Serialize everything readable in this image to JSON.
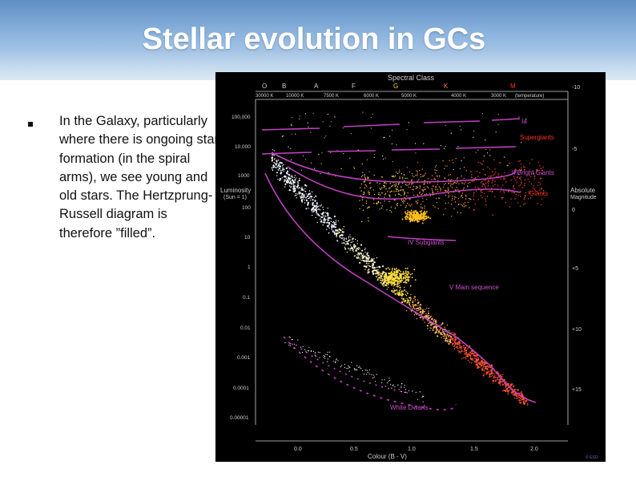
{
  "slide": {
    "title": "Stellar evolution in GCs",
    "bullet": "In the Galaxy, particularly where there is ongoing star formation (in the spiral arms), we see young and old stars. The Hertzprung-Russell diagram is therefore ”filled”."
  },
  "colors": {
    "header_top": "#5e8fc4",
    "header_bottom": "#c8dcef",
    "plot_bg": "#000000",
    "curve": "#c040c0",
    "label_magenta": "#d050d0",
    "label_red": "#ff3020",
    "axis_text": "#cfcfcf"
  },
  "hr_diagram": {
    "top_label": "Spectral Class",
    "spectral_classes": [
      "O",
      "B",
      "A",
      "F",
      "G",
      "K",
      "M"
    ],
    "temperatures": [
      "30000 K",
      "10000 K",
      "7500 K",
      "6000 K",
      "5000 K",
      "4000 K",
      "3000 K"
    ],
    "temp_label": "(temperature)",
    "luminosity_ticks": [
      "100,000",
      "10,000",
      "1000",
      "100",
      "10",
      "1",
      "0.1",
      "0.01",
      "0.001",
      "0.0001",
      "0.00001"
    ],
    "magnitude_ticks": [
      "-10",
      "-5",
      "0",
      "+5",
      "+10",
      "+15"
    ],
    "x_ticks": [
      "0.0",
      "0.5",
      "1.0",
      "1.5",
      "2.0"
    ],
    "left_axis_label_1": "Luminosity",
    "left_axis_label_2": "(Sun = 1)",
    "right_axis_label_1": "Absolute",
    "right_axis_label_2": "Magnitude",
    "x_axis_label": "Colour (B - V)",
    "region_labels": {
      "ia": "Ia",
      "supergiants": "Supergiants",
      "bright_giants": "II Bright Giants",
      "giants": "Giants",
      "subgiants": "IV Subgiants",
      "main_sequence": "V Main sequence",
      "white_dwarfs": "White Dwarfs"
    },
    "credit": "© ESO"
  }
}
